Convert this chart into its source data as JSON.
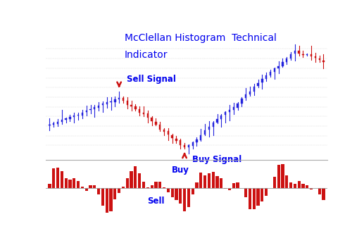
{
  "title_line1": "McClellan Histogram  Technical",
  "title_line2": "Indicator",
  "title_color": "#0000ee",
  "title_fontsize": 10,
  "bg_color": "#ffffff",
  "candle_up_color": "#2222dd",
  "candle_down_color": "#cc1111",
  "histogram_color": "#cc1111",
  "sell_signal_text": "Sell Signal",
  "buy_signal_text": "Buy Signal",
  "hist_buy_label": "Buy",
  "hist_sell_label": "Sell",
  "annotation_color": "#0000ee",
  "arrow_color": "#cc1111",
  "separator_color": "#aaaaaa",
  "n_candles": 68
}
